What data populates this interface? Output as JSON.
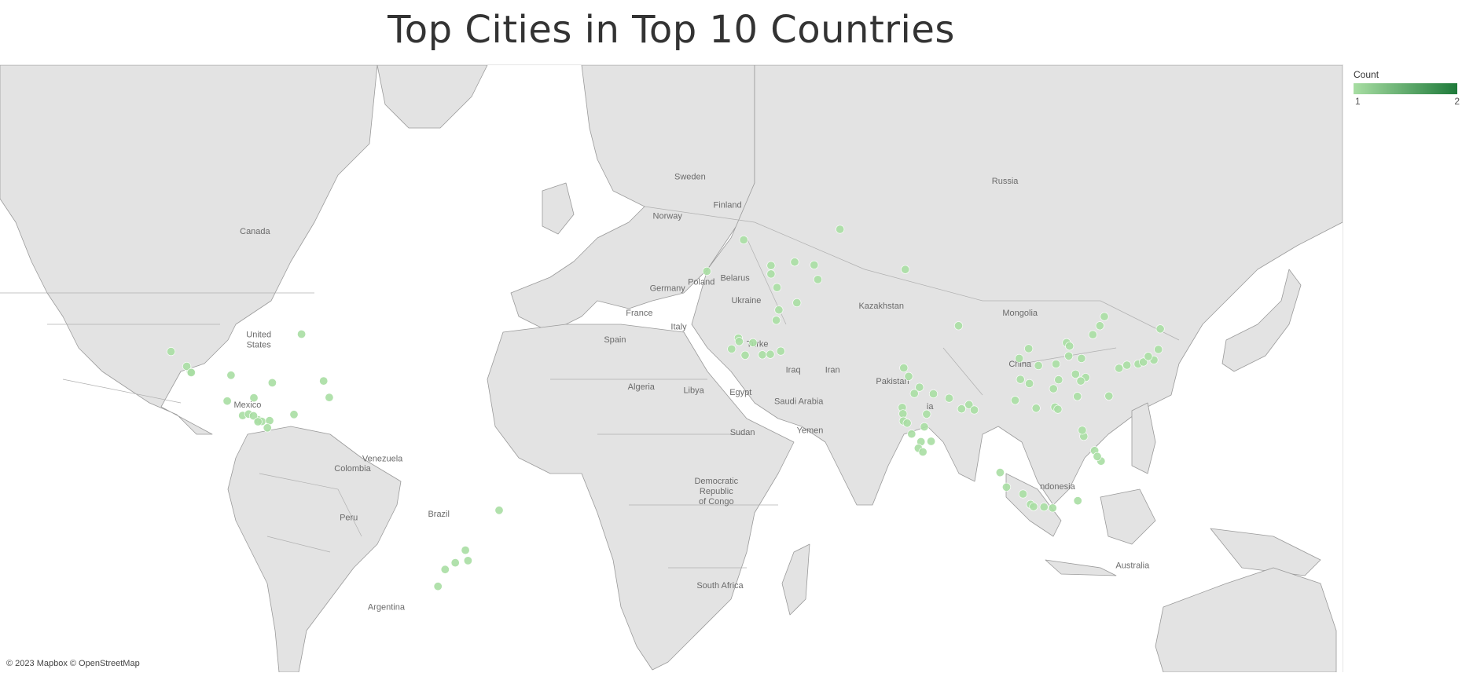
{
  "title": "Top Cities in Top 10 Countries",
  "legend": {
    "title": "Count",
    "min_label": "1",
    "max_label": "2",
    "color_min": "#a8dea3",
    "color_max": "#1e7a3a"
  },
  "attribution": "© 2023 Mapbox © OpenStreetMap",
  "colors": {
    "ocean": "#ffffff",
    "land": "#e3e3e3",
    "border": "#9a9a9a",
    "point": "#a8dea3"
  },
  "map_labels": {
    "sweden": "Sweden",
    "finland": "Finland",
    "norway": "Norway",
    "russia": "Russia",
    "canada": "Canada",
    "poland": "Poland",
    "belarus": "Belarus",
    "germany": "Germany",
    "ukraine": "Ukraine",
    "kazakhstan": "Kazakhstan",
    "mongolia": "Mongolia",
    "france": "France",
    "italy": "Italy",
    "united_states": "United\nStates",
    "spain": "Spain",
    "turkey": "Turke",
    "china": "China",
    "iraq": "Iraq",
    "iran": "Iran",
    "algeria": "Algeria",
    "libya": "Libya",
    "egypt": "Egypt",
    "pakistan": "Pakistan",
    "saudi_arabia": "Saudi Arabia",
    "mexico": "Mexico",
    "india": "ia",
    "sudan": "Sudan",
    "yemen": "Yemen",
    "venezuela": "Venezuela",
    "colombia": "Colombia",
    "indonesia": "ndonesia",
    "dr_congo": "Democratic\nRepublic\nof Congo",
    "brazil": "Brazil",
    "peru": "Peru",
    "australia": "Australia",
    "south_africa": "South Africa",
    "argentina": "Argentina"
  },
  "cities": [
    {
      "lat": 59.9,
      "lon": 30.3,
      "count": 1
    },
    {
      "lat": 61.5,
      "lon": 56.0,
      "count": 1
    },
    {
      "lat": 55.7,
      "lon": 37.6,
      "count": 1
    },
    {
      "lat": 56.3,
      "lon": 43.9,
      "count": 1
    },
    {
      "lat": 55.8,
      "lon": 49.1,
      "count": 1
    },
    {
      "lat": 54.2,
      "lon": 37.6,
      "count": 1
    },
    {
      "lat": 53.2,
      "lon": 50.1,
      "count": 1
    },
    {
      "lat": 51.7,
      "lon": 39.2,
      "count": 1
    },
    {
      "lat": 55.0,
      "lon": 73.4,
      "count": 1
    },
    {
      "lat": 54.7,
      "lon": 20.5,
      "count": 1
    },
    {
      "lat": 47.2,
      "lon": 39.7,
      "count": 1
    },
    {
      "lat": 45.0,
      "lon": 39.0,
      "count": 1
    },
    {
      "lat": 48.7,
      "lon": 44.5,
      "count": 1
    },
    {
      "lat": 41.0,
      "lon": 28.9,
      "count": 1
    },
    {
      "lat": 40.2,
      "lon": 29.1,
      "count": 1
    },
    {
      "lat": 39.9,
      "lon": 32.8,
      "count": 1
    },
    {
      "lat": 38.4,
      "lon": 27.1,
      "count": 1
    },
    {
      "lat": 37.0,
      "lon": 35.3,
      "count": 1
    },
    {
      "lat": 37.1,
      "lon": 37.4,
      "count": 1
    },
    {
      "lat": 37.9,
      "lon": 40.2,
      "count": 1
    },
    {
      "lat": 36.9,
      "lon": 30.7,
      "count": 1
    },
    {
      "lat": 33.7,
      "lon": 73.0,
      "count": 1
    },
    {
      "lat": 31.5,
      "lon": 74.3,
      "count": 1
    },
    {
      "lat": 28.6,
      "lon": 77.2,
      "count": 1
    },
    {
      "lat": 26.9,
      "lon": 75.8,
      "count": 1
    },
    {
      "lat": 26.8,
      "lon": 80.9,
      "count": 1
    },
    {
      "lat": 25.6,
      "lon": 85.1,
      "count": 1
    },
    {
      "lat": 23.0,
      "lon": 72.6,
      "count": 1
    },
    {
      "lat": 22.6,
      "lon": 88.4,
      "count": 1
    },
    {
      "lat": 21.2,
      "lon": 72.8,
      "count": 1
    },
    {
      "lat": 21.1,
      "lon": 79.1,
      "count": 1
    },
    {
      "lat": 19.1,
      "lon": 72.9,
      "count": 1
    },
    {
      "lat": 18.5,
      "lon": 73.9,
      "count": 1
    },
    {
      "lat": 17.4,
      "lon": 78.5,
      "count": 1
    },
    {
      "lat": 15.3,
      "lon": 75.1,
      "count": 1
    },
    {
      "lat": 12.97,
      "lon": 77.6,
      "count": 1
    },
    {
      "lat": 13.1,
      "lon": 80.3,
      "count": 1
    },
    {
      "lat": 11.0,
      "lon": 76.9,
      "count": 1
    },
    {
      "lat": 9.9,
      "lon": 78.1,
      "count": 1
    },
    {
      "lat": 23.8,
      "lon": 90.4,
      "count": 1
    },
    {
      "lat": 22.3,
      "lon": 91.8,
      "count": 1
    },
    {
      "lat": 45.8,
      "lon": 126.5,
      "count": 1
    },
    {
      "lat": 43.8,
      "lon": 125.3,
      "count": 1
    },
    {
      "lat": 41.8,
      "lon": 123.4,
      "count": 1
    },
    {
      "lat": 39.9,
      "lon": 116.4,
      "count": 1
    },
    {
      "lat": 39.1,
      "lon": 117.2,
      "count": 1
    },
    {
      "lat": 36.1,
      "lon": 120.4,
      "count": 1
    },
    {
      "lat": 36.7,
      "lon": 117.0,
      "count": 1
    },
    {
      "lat": 34.7,
      "lon": 113.6,
      "count": 1
    },
    {
      "lat": 34.3,
      "lon": 108.9,
      "count": 1
    },
    {
      "lat": 32.1,
      "lon": 118.8,
      "count": 1
    },
    {
      "lat": 31.2,
      "lon": 121.5,
      "count": 1
    },
    {
      "lat": 30.6,
      "lon": 114.3,
      "count": 1
    },
    {
      "lat": 30.3,
      "lon": 120.2,
      "count": 1
    },
    {
      "lat": 30.7,
      "lon": 104.1,
      "count": 1
    },
    {
      "lat": 29.6,
      "lon": 106.5,
      "count": 1
    },
    {
      "lat": 28.2,
      "lon": 112.9,
      "count": 1
    },
    {
      "lat": 26.1,
      "lon": 119.3,
      "count": 1
    },
    {
      "lat": 23.1,
      "lon": 113.3,
      "count": 1
    },
    {
      "lat": 22.5,
      "lon": 114.1,
      "count": 1
    },
    {
      "lat": 25.0,
      "lon": 102.7,
      "count": 1
    },
    {
      "lat": 36.1,
      "lon": 103.8,
      "count": 1
    },
    {
      "lat": 43.8,
      "lon": 87.6,
      "count": 1
    },
    {
      "lat": 38.5,
      "lon": 106.3,
      "count": 1
    },
    {
      "lat": 22.8,
      "lon": 108.3,
      "count": 1
    },
    {
      "lat": 35.7,
      "lon": 139.7,
      "count": 1
    },
    {
      "lat": 34.7,
      "lon": 135.5,
      "count": 1
    },
    {
      "lat": 35.2,
      "lon": 136.9,
      "count": 1
    },
    {
      "lat": 33.6,
      "lon": 130.4,
      "count": 1
    },
    {
      "lat": 34.4,
      "lon": 132.5,
      "count": 1
    },
    {
      "lat": 38.3,
      "lon": 140.9,
      "count": 1
    },
    {
      "lat": 43.1,
      "lon": 141.4,
      "count": 1
    },
    {
      "lat": 36.6,
      "lon": 138.2,
      "count": 1
    },
    {
      "lat": 26.2,
      "lon": 127.7,
      "count": 1
    },
    {
      "lat": 14.6,
      "lon": 121.0,
      "count": 1
    },
    {
      "lat": 16.4,
      "lon": 120.6,
      "count": 1
    },
    {
      "lat": 10.3,
      "lon": 123.9,
      "count": 1
    },
    {
      "lat": 7.1,
      "lon": 125.6,
      "count": 1
    },
    {
      "lat": 8.5,
      "lon": 124.6,
      "count": 1
    },
    {
      "lat": -6.2,
      "lon": 106.8,
      "count": 1
    },
    {
      "lat": -6.9,
      "lon": 107.6,
      "count": 1
    },
    {
      "lat": -7.3,
      "lon": 112.7,
      "count": 1
    },
    {
      "lat": -7.0,
      "lon": 110.4,
      "count": 1
    },
    {
      "lat": 3.6,
      "lon": 98.7,
      "count": 1
    },
    {
      "lat": -0.9,
      "lon": 100.4,
      "count": 1
    },
    {
      "lat": -5.1,
      "lon": 119.4,
      "count": 1
    },
    {
      "lat": -3.0,
      "lon": 104.8,
      "count": 1
    },
    {
      "lat": 32.7,
      "lon": -117.2,
      "count": 1
    },
    {
      "lat": 34.1,
      "lon": -118.2,
      "count": 1
    },
    {
      "lat": 37.8,
      "lon": -122.4,
      "count": 1
    },
    {
      "lat": 31.8,
      "lon": -106.4,
      "count": 1
    },
    {
      "lat": 29.8,
      "lon": -95.4,
      "count": 1
    },
    {
      "lat": 25.8,
      "lon": -80.2,
      "count": 1
    },
    {
      "lat": 30.3,
      "lon": -81.7,
      "count": 1
    },
    {
      "lat": 41.9,
      "lon": -87.6,
      "count": 1
    },
    {
      "lat": 19.4,
      "lon": -99.1,
      "count": 1
    },
    {
      "lat": 20.7,
      "lon": -103.3,
      "count": 1
    },
    {
      "lat": 25.7,
      "lon": -100.3,
      "count": 1
    },
    {
      "lat": 19.0,
      "lon": -98.2,
      "count": 1
    },
    {
      "lat": 21.1,
      "lon": -101.7,
      "count": 1
    },
    {
      "lat": 20.6,
      "lon": -100.4,
      "count": 1
    },
    {
      "lat": 32.5,
      "lon": -117.0,
      "count": 1
    },
    {
      "lat": 19.2,
      "lon": -96.1,
      "count": 1
    },
    {
      "lat": 18.9,
      "lon": -99.2,
      "count": 1
    },
    {
      "lat": 24.8,
      "lon": -107.4,
      "count": 1
    },
    {
      "lat": 17.1,
      "lon": -96.7,
      "count": 1
    },
    {
      "lat": 21.0,
      "lon": -89.6,
      "count": 1
    },
    {
      "lat": -23.5,
      "lon": -46.6,
      "count": 1
    },
    {
      "lat": -22.9,
      "lon": -43.2,
      "count": 1
    },
    {
      "lat": -19.9,
      "lon": -43.9,
      "count": 1
    },
    {
      "lat": -25.4,
      "lon": -49.3,
      "count": 1
    },
    {
      "lat": -30.0,
      "lon": -51.2,
      "count": 1
    },
    {
      "lat": -8.0,
      "lon": -34.9,
      "count": 1
    }
  ]
}
